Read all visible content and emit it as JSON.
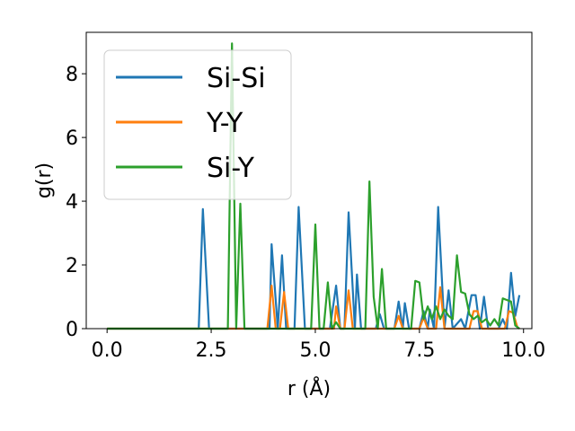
{
  "chart_data": {
    "type": "line",
    "xlabel": "r (Å)",
    "ylabel": "g(r)",
    "xlim": [
      -0.5,
      10.2
    ],
    "ylim": [
      0,
      9.3
    ],
    "xticks": [
      0.0,
      2.5,
      5.0,
      7.5,
      10.0
    ],
    "xtick_labels": [
      "0.0",
      "2.5",
      "5.0",
      "7.5",
      "10.0"
    ],
    "yticks": [
      0,
      2,
      4,
      6,
      8
    ],
    "ytick_labels": [
      "0",
      "2",
      "4",
      "6",
      "8"
    ],
    "grid": false,
    "legend_position": "top-left",
    "series": [
      {
        "name": "Si-Si",
        "color": "#1f77b4",
        "points": [
          [
            0.0,
            0
          ],
          [
            2.2,
            0
          ],
          [
            2.3,
            3.75
          ],
          [
            2.45,
            0
          ],
          [
            2.95,
            0
          ],
          [
            3.9,
            0
          ],
          [
            3.95,
            2.65
          ],
          [
            4.1,
            0
          ],
          [
            4.2,
            2.3
          ],
          [
            4.3,
            0
          ],
          [
            4.5,
            0
          ],
          [
            4.6,
            3.82
          ],
          [
            4.75,
            0
          ],
          [
            5.35,
            0
          ],
          [
            5.5,
            1.35
          ],
          [
            5.6,
            0
          ],
          [
            5.7,
            0
          ],
          [
            5.8,
            3.65
          ],
          [
            5.95,
            0
          ],
          [
            6.0,
            1.7
          ],
          [
            6.1,
            0
          ],
          [
            6.45,
            0
          ],
          [
            6.55,
            0.45
          ],
          [
            6.65,
            0
          ],
          [
            6.9,
            0
          ],
          [
            7.0,
            0.85
          ],
          [
            7.1,
            0
          ],
          [
            7.15,
            0.8
          ],
          [
            7.25,
            0
          ],
          [
            7.5,
            0
          ],
          [
            7.6,
            0.55
          ],
          [
            7.7,
            0
          ],
          [
            7.75,
            0.6
          ],
          [
            7.85,
            0
          ],
          [
            7.95,
            3.82
          ],
          [
            8.1,
            0
          ],
          [
            8.2,
            1.2
          ],
          [
            8.3,
            0
          ],
          [
            8.5,
            0.3
          ],
          [
            8.6,
            0
          ],
          [
            8.75,
            1.05
          ],
          [
            8.85,
            1.05
          ],
          [
            8.95,
            0
          ],
          [
            9.05,
            1.0
          ],
          [
            9.15,
            0
          ],
          [
            9.4,
            0
          ],
          [
            9.5,
            0.3
          ],
          [
            9.6,
            0
          ],
          [
            9.7,
            1.75
          ],
          [
            9.8,
            0.4
          ],
          [
            9.9,
            1.05
          ]
        ]
      },
      {
        "name": "Y-Y",
        "color": "#ff7f0e",
        "points": [
          [
            0.0,
            0
          ],
          [
            3.85,
            0
          ],
          [
            3.95,
            1.35
          ],
          [
            4.05,
            0
          ],
          [
            4.15,
            0
          ],
          [
            4.25,
            1.15
          ],
          [
            4.35,
            0
          ],
          [
            5.45,
            0
          ],
          [
            5.5,
            0.7
          ],
          [
            5.6,
            0
          ],
          [
            5.7,
            0
          ],
          [
            5.8,
            1.2
          ],
          [
            5.9,
            0
          ],
          [
            6.9,
            0
          ],
          [
            7.0,
            0.4
          ],
          [
            7.1,
            0
          ],
          [
            7.5,
            0
          ],
          [
            7.6,
            0.35
          ],
          [
            7.7,
            0
          ],
          [
            7.9,
            0
          ],
          [
            8.0,
            1.3
          ],
          [
            8.1,
            0
          ],
          [
            8.7,
            0
          ],
          [
            8.8,
            0.55
          ],
          [
            8.9,
            0.55
          ],
          [
            9.0,
            0
          ],
          [
            9.55,
            0
          ],
          [
            9.65,
            0.55
          ],
          [
            9.75,
            0.5
          ],
          [
            9.85,
            0.05
          ],
          [
            9.9,
            0
          ]
        ]
      },
      {
        "name": "Si-Y",
        "color": "#2ca02c",
        "points": [
          [
            0.0,
            0
          ],
          [
            2.9,
            0
          ],
          [
            3.0,
            8.95
          ],
          [
            3.1,
            0
          ],
          [
            3.2,
            3.92
          ],
          [
            3.3,
            0
          ],
          [
            4.9,
            0
          ],
          [
            5.0,
            3.27
          ],
          [
            5.1,
            0
          ],
          [
            5.2,
            0
          ],
          [
            5.3,
            1.45
          ],
          [
            5.4,
            0
          ],
          [
            5.5,
            0.2
          ],
          [
            5.6,
            0
          ],
          [
            6.2,
            0
          ],
          [
            6.3,
            4.62
          ],
          [
            6.4,
            1.0
          ],
          [
            6.5,
            0
          ],
          [
            6.6,
            1.87
          ],
          [
            6.7,
            0
          ],
          [
            7.3,
            0
          ],
          [
            7.4,
            1.5
          ],
          [
            7.5,
            1.45
          ],
          [
            7.6,
            0.3
          ],
          [
            7.7,
            0.7
          ],
          [
            7.8,
            0.3
          ],
          [
            7.9,
            0.7
          ],
          [
            8.0,
            0.3
          ],
          [
            8.1,
            0.6
          ],
          [
            8.2,
            0.4
          ],
          [
            8.3,
            0.3
          ],
          [
            8.4,
            2.3
          ],
          [
            8.5,
            1.15
          ],
          [
            8.6,
            1.1
          ],
          [
            8.7,
            0.45
          ],
          [
            8.8,
            0.3
          ],
          [
            8.9,
            0.4
          ],
          [
            9.0,
            0.2
          ],
          [
            9.1,
            0.3
          ],
          [
            9.2,
            0.1
          ],
          [
            9.3,
            0.3
          ],
          [
            9.4,
            0.1
          ],
          [
            9.5,
            0.95
          ],
          [
            9.6,
            0.9
          ],
          [
            9.7,
            0.85
          ],
          [
            9.8,
            0.1
          ],
          [
            9.9,
            0
          ]
        ]
      }
    ]
  }
}
